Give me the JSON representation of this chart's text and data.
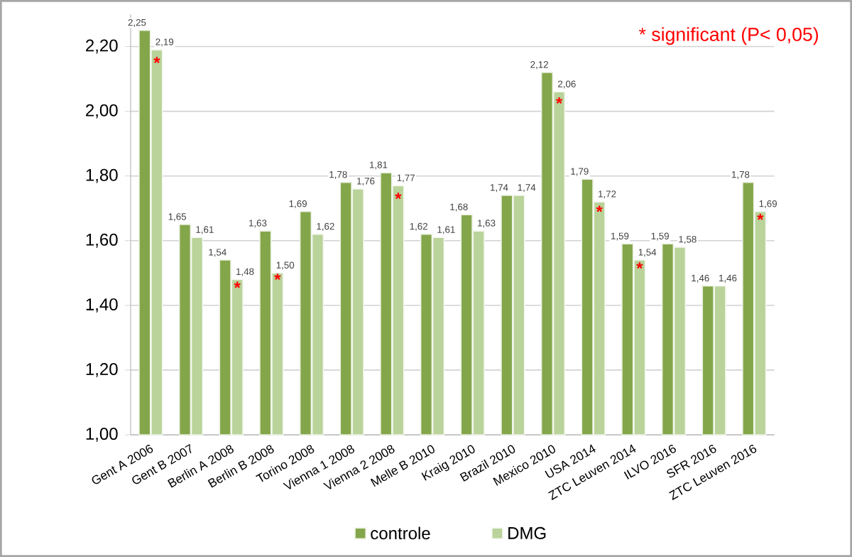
{
  "chart_data": {
    "type": "bar",
    "categories": [
      "Gent A 2006",
      "Gent B 2007",
      "Berlin A 2008",
      "Berlin B 2008",
      "Torino 2008",
      "Vienna 1 2008",
      "Vienna 2 2008",
      "Melle B 2010",
      "Kraig 2010",
      "Brazil 2010",
      "Mexico 2010",
      "USA 2014",
      "ZTC Leuven 2014",
      "ILVO 2016",
      "SFR 2016",
      "ZTC Leuven 2016"
    ],
    "series": [
      {
        "name": "controle",
        "color": "#84a64b",
        "values": [
          2.25,
          1.65,
          1.54,
          1.63,
          1.69,
          1.78,
          1.81,
          1.62,
          1.68,
          1.74,
          2.12,
          1.79,
          1.59,
          1.59,
          1.46,
          1.78
        ],
        "value_labels": [
          "2,25",
          "1,65",
          "1,54",
          "1,63",
          "1,69",
          "1,78",
          "1,81",
          "1,62",
          "1,68",
          "1,74",
          "2,12",
          "1,79",
          "1,59",
          "1,59",
          "1,46",
          "1,78"
        ]
      },
      {
        "name": "DMG",
        "color": "#b9d39a",
        "values": [
          2.19,
          1.61,
          1.48,
          1.5,
          1.62,
          1.76,
          1.77,
          1.61,
          1.63,
          1.74,
          2.06,
          1.72,
          1.54,
          1.58,
          1.46,
          1.69
        ],
        "value_labels": [
          "2,19",
          "1,61",
          "1,48",
          "1,50",
          "1,62",
          "1,76",
          "1,77",
          "1,61",
          "1,63",
          "1,74",
          "2,06",
          "1,72",
          "1,54",
          "1,58",
          "1,46",
          "1,69"
        ]
      }
    ],
    "ylim": [
      1.0,
      2.3
    ],
    "yticks": [
      {
        "value": 1.0,
        "label": "1,00"
      },
      {
        "value": 1.2,
        "label": "1,20"
      },
      {
        "value": 1.4,
        "label": "1,40"
      },
      {
        "value": 1.6,
        "label": "1,60"
      },
      {
        "value": 1.8,
        "label": "1,80"
      },
      {
        "value": 2.0,
        "label": "2,00"
      },
      {
        "value": 2.2,
        "label": "2,20"
      }
    ],
    "grid": "y",
    "legend": "bottom",
    "annotations": [
      "* significant (P< 0,05)",
      {
        "text": "*",
        "x": "Gent A 2006",
        "y": 2.15
      },
      {
        "text": "*",
        "x": "Berlin A 2008",
        "y": 1.455
      },
      {
        "text": "*",
        "x": "Berlin B 2008",
        "y": 1.48
      },
      {
        "text": "*",
        "x": "Vienna 2 2008",
        "y": 1.73
      },
      {
        "text": "*",
        "x": "Mexico 2010",
        "y": 2.025
      },
      {
        "text": "*",
        "x": "USA 2014",
        "y": 1.69
      },
      {
        "text": "*",
        "x": "ZTC Leuven 2014",
        "y": 1.515
      },
      {
        "text": "*",
        "x": "ZTC Leuven 2016",
        "y": 1.665
      }
    ]
  }
}
